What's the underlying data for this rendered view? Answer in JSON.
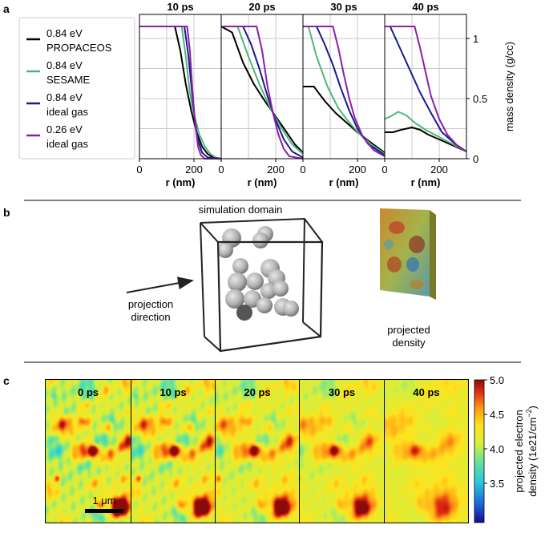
{
  "figure": {
    "panel_a": {
      "label": "a",
      "legend": [
        {
          "energy": "0.84 eV",
          "model": "PROPACEOS",
          "color": "#000000"
        },
        {
          "energy": "0.84 eV",
          "model": "SESAME",
          "color": "#4db87a"
        },
        {
          "energy": "0.84 eV",
          "model": "ideal gas",
          "color": "#1a1a8c"
        },
        {
          "energy": "0.26 eV",
          "model": "ideal gas",
          "color": "#8e1ea8"
        }
      ]
    },
    "panel_b": {
      "label": "b",
      "domain_label": "simulation domain",
      "projection_label_1": "projection",
      "projection_label_2": "direction",
      "projected_label_1": "projected",
      "projected_label_2": "density"
    },
    "panel_c": {
      "label": "c",
      "times": [
        "0 ps",
        "10 ps",
        "20 ps",
        "30 ps",
        "40 ps"
      ],
      "scalebar": "1 μm",
      "colorbar_ticks": [
        "5.0",
        "4.5",
        "4.0",
        "3.5"
      ],
      "colorbar_label_1": "projected electron",
      "colorbar_label_2": "density (1e21/cm",
      "colorbar_label_sup": "−2",
      "colorbar_label_end": ")"
    }
  },
  "chart_data": [
    {
      "type": "line",
      "title": "10 ps",
      "xlabel": "r (nm)",
      "xlim": [
        0,
        300
      ],
      "ylim": [
        0,
        1.2
      ],
      "xticks": [
        "0",
        "200"
      ],
      "series": [
        {
          "name": "0.84 eV PROPACEOS",
          "x": [
            0,
            130,
            150,
            170,
            190,
            210,
            230,
            250,
            270,
            300
          ],
          "y": [
            1.1,
            1.1,
            0.9,
            0.62,
            0.4,
            0.22,
            0.1,
            0.04,
            0.01,
            0
          ]
        },
        {
          "name": "0.84 eV SESAME",
          "x": [
            0,
            155,
            170,
            185,
            200,
            220,
            240,
            260,
            280,
            300
          ],
          "y": [
            1.1,
            1.1,
            0.85,
            0.55,
            0.37,
            0.2,
            0.1,
            0.04,
            0.01,
            0
          ]
        },
        {
          "name": "0.84 eV ideal gas",
          "x": [
            0,
            165,
            180,
            195,
            205,
            215,
            230,
            250,
            300
          ],
          "y": [
            1.1,
            1.1,
            0.85,
            0.5,
            0.3,
            0.15,
            0.05,
            0.01,
            0
          ]
        },
        {
          "name": "0.26 eV ideal gas",
          "x": [
            0,
            175,
            185,
            195,
            205,
            215,
            225,
            240,
            300
          ],
          "y": [
            1.1,
            1.1,
            0.9,
            0.55,
            0.28,
            0.1,
            0.03,
            0,
            0
          ]
        }
      ]
    },
    {
      "type": "line",
      "title": "20 ps",
      "xlabel": "r (nm)",
      "xlim": [
        0,
        300
      ],
      "ylim": [
        0,
        1.2
      ],
      "xticks": [
        "0",
        "200"
      ],
      "series": [
        {
          "name": "0.84 eV PROPACEOS",
          "x": [
            0,
            40,
            80,
            120,
            160,
            200,
            240,
            270,
            300
          ],
          "y": [
            1.1,
            1.05,
            0.8,
            0.62,
            0.48,
            0.35,
            0.22,
            0.12,
            0.05
          ]
        },
        {
          "name": "0.84 eV SESAME",
          "x": [
            0,
            60,
            100,
            140,
            180,
            220,
            260,
            300
          ],
          "y": [
            1.1,
            1.1,
            0.85,
            0.62,
            0.42,
            0.26,
            0.12,
            0.04
          ]
        },
        {
          "name": "0.84 eV ideal gas",
          "x": [
            0,
            80,
            110,
            140,
            170,
            200,
            230,
            260,
            300
          ],
          "y": [
            1.1,
            1.1,
            0.95,
            0.75,
            0.52,
            0.32,
            0.16,
            0.06,
            0.01
          ]
        },
        {
          "name": "0.26 eV ideal gas",
          "x": [
            0,
            130,
            150,
            170,
            190,
            210,
            230,
            250,
            300
          ],
          "y": [
            1.1,
            1.1,
            0.9,
            0.6,
            0.38,
            0.2,
            0.08,
            0.02,
            0
          ]
        }
      ]
    },
    {
      "type": "line",
      "title": "30 ps",
      "xlabel": "r (nm)",
      "xlim": [
        0,
        300
      ],
      "ylim": [
        0,
        1.2
      ],
      "xticks": [
        "0",
        "200"
      ],
      "series": [
        {
          "name": "0.84 eV PROPACEOS",
          "x": [
            0,
            40,
            80,
            120,
            160,
            200,
            240,
            300
          ],
          "y": [
            0.6,
            0.6,
            0.48,
            0.38,
            0.3,
            0.22,
            0.15,
            0.05
          ]
        },
        {
          "name": "0.84 eV SESAME",
          "x": [
            0,
            20,
            50,
            90,
            130,
            170,
            210,
            250,
            300
          ],
          "y": [
            1.1,
            1.1,
            0.85,
            0.6,
            0.42,
            0.3,
            0.2,
            0.12,
            0.04
          ]
        },
        {
          "name": "0.84 eV ideal gas",
          "x": [
            0,
            50,
            80,
            110,
            140,
            170,
            200,
            240,
            300
          ],
          "y": [
            1.1,
            1.1,
            0.95,
            0.78,
            0.58,
            0.4,
            0.25,
            0.12,
            0.03
          ]
        },
        {
          "name": "0.26 eV ideal gas",
          "x": [
            0,
            110,
            130,
            150,
            170,
            190,
            220,
            260,
            300
          ],
          "y": [
            1.1,
            1.1,
            0.92,
            0.7,
            0.5,
            0.34,
            0.18,
            0.07,
            0.02
          ]
        }
      ]
    },
    {
      "type": "line",
      "title": "40 ps",
      "xlabel": "r (nm)",
      "xlim": [
        0,
        300
      ],
      "ylim": [
        0,
        1.2
      ],
      "xticks": [
        "0",
        "200"
      ],
      "yticks": [
        0,
        0.5,
        1
      ],
      "ylabel": "mass density (g/cc)",
      "series": [
        {
          "name": "0.84 eV PROPACEOS",
          "x": [
            0,
            30,
            60,
            100,
            130,
            160,
            200,
            240,
            300
          ],
          "y": [
            0.22,
            0.22,
            0.24,
            0.26,
            0.24,
            0.2,
            0.16,
            0.12,
            0.06
          ]
        },
        {
          "name": "0.84 eV SESAME",
          "x": [
            0,
            20,
            50,
            80,
            110,
            150,
            200,
            250,
            300
          ],
          "y": [
            0.33,
            0.35,
            0.39,
            0.36,
            0.3,
            0.24,
            0.18,
            0.12,
            0.06
          ]
        },
        {
          "name": "0.84 eV ideal gas",
          "x": [
            0,
            20,
            50,
            90,
            130,
            170,
            210,
            260,
            300
          ],
          "y": [
            1.1,
            1.1,
            0.95,
            0.75,
            0.55,
            0.38,
            0.22,
            0.12,
            0.06
          ]
        },
        {
          "name": "0.26 eV ideal gas",
          "x": [
            0,
            110,
            130,
            150,
            170,
            200,
            230,
            270,
            300
          ],
          "y": [
            1.1,
            1.1,
            0.92,
            0.72,
            0.52,
            0.33,
            0.2,
            0.1,
            0.06
          ]
        }
      ]
    }
  ]
}
